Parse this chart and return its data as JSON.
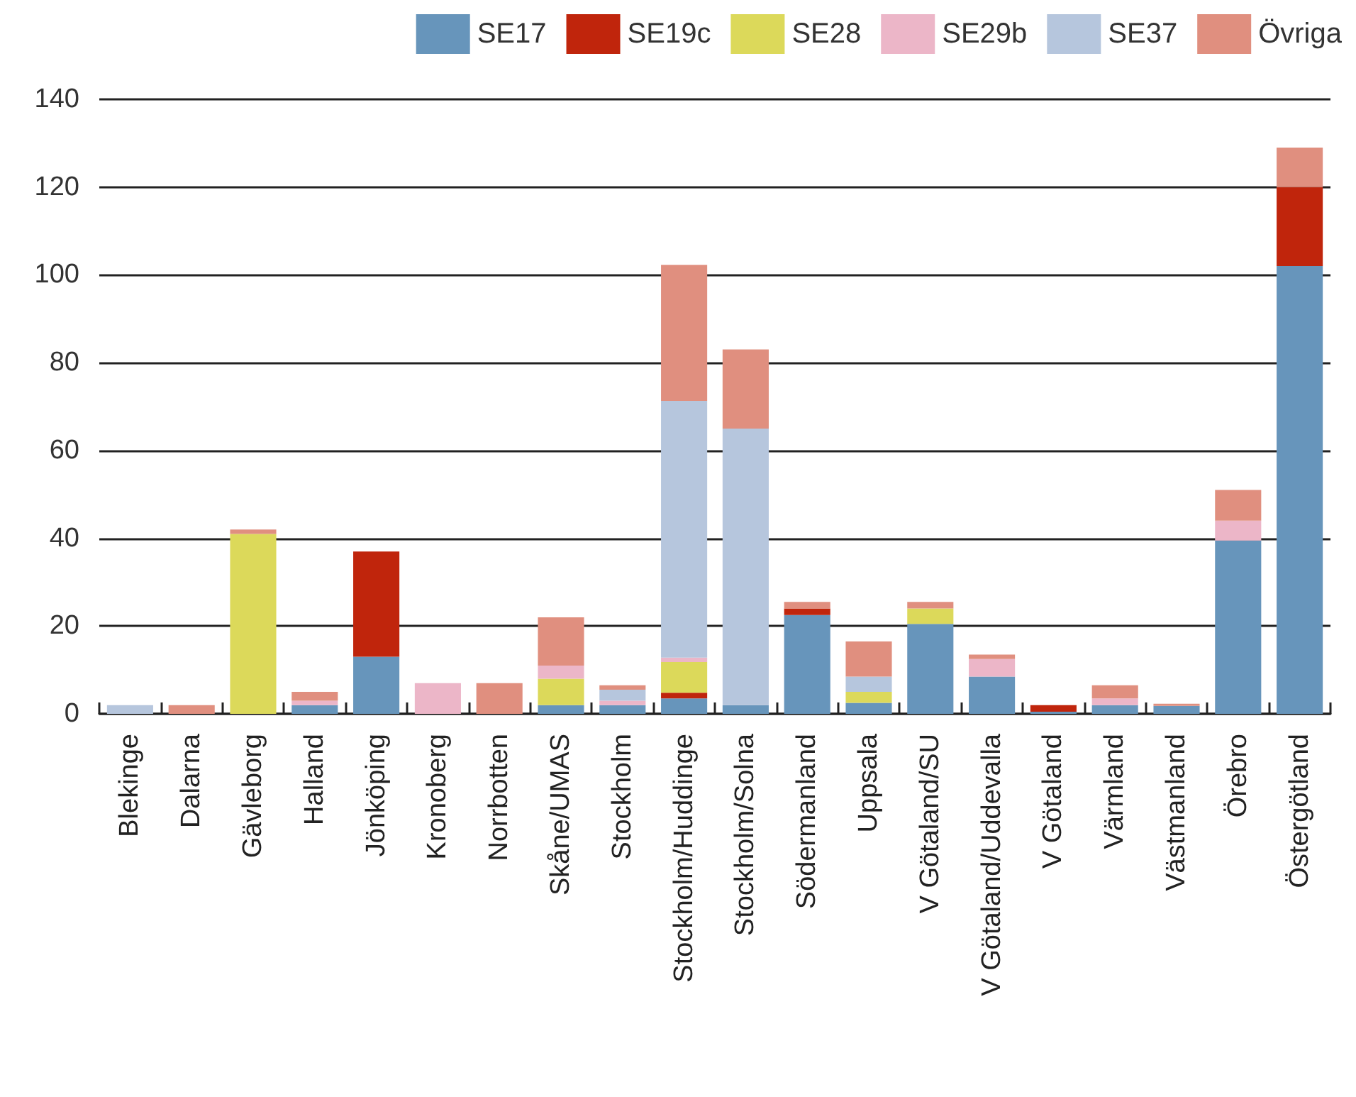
{
  "chart_data": {
    "type": "bar",
    "stacked": true,
    "categories": [
      "Blekinge",
      "Dalarna",
      "Gävleborg",
      "Halland",
      "Jönköping",
      "Kronoberg",
      "Norrbotten",
      "Skåne/UMAS",
      "Stockholm",
      "Stockholm/Huddinge",
      "Stockholm/Solna",
      "Södermanland",
      "Uppsala",
      "V Götaland/SU",
      "V Götaland/Uddevalla",
      "V Götaland",
      "Värmland",
      "Västmanland",
      "Örebro",
      "Östergötland"
    ],
    "series": [
      {
        "name": "SE17",
        "color": "#6795bb",
        "values": [
          0,
          0,
          0,
          2,
          13,
          0,
          0,
          2,
          2,
          3.5,
          2,
          22.5,
          2.5,
          20.5,
          8.5,
          0.5,
          2,
          1.8,
          39.5,
          102
        ]
      },
      {
        "name": "SE19c",
        "color": "#c0250c",
        "values": [
          0,
          0,
          0,
          0,
          24,
          0,
          0,
          0,
          0,
          1.3,
          0,
          1.5,
          0,
          0,
          0,
          1.5,
          0,
          0,
          0,
          18
        ]
      },
      {
        "name": "SE28",
        "color": "#dcd95a",
        "values": [
          0,
          0,
          41,
          0,
          0,
          0,
          0,
          6,
          0,
          7,
          0,
          0,
          2.5,
          3.5,
          0,
          0,
          0,
          0,
          0,
          0
        ]
      },
      {
        "name": "SE29b",
        "color": "#ecb6c8",
        "values": [
          0,
          0,
          0,
          1,
          0,
          7,
          0,
          3,
          1,
          1,
          0,
          0,
          0,
          0,
          4,
          0,
          1.5,
          0,
          4.5,
          0
        ]
      },
      {
        "name": "SE37",
        "color": "#b6c6dd",
        "values": [
          2,
          0,
          0,
          0,
          0,
          0,
          0,
          0,
          2.5,
          58.5,
          63,
          0,
          3.5,
          0,
          0,
          0,
          0,
          0,
          0,
          0
        ]
      },
      {
        "name": "Övriga",
        "color": "#e08f7f",
        "values": [
          0,
          2,
          1,
          2,
          0,
          0,
          7,
          11,
          1,
          31,
          18,
          1.5,
          8,
          1.5,
          1,
          0,
          3,
          0.5,
          7,
          9
        ]
      }
    ],
    "ylim": [
      0,
      140
    ],
    "yticks": [
      0,
      20,
      40,
      60,
      80,
      100,
      120,
      140
    ],
    "grid": "y",
    "legend": "top right"
  }
}
